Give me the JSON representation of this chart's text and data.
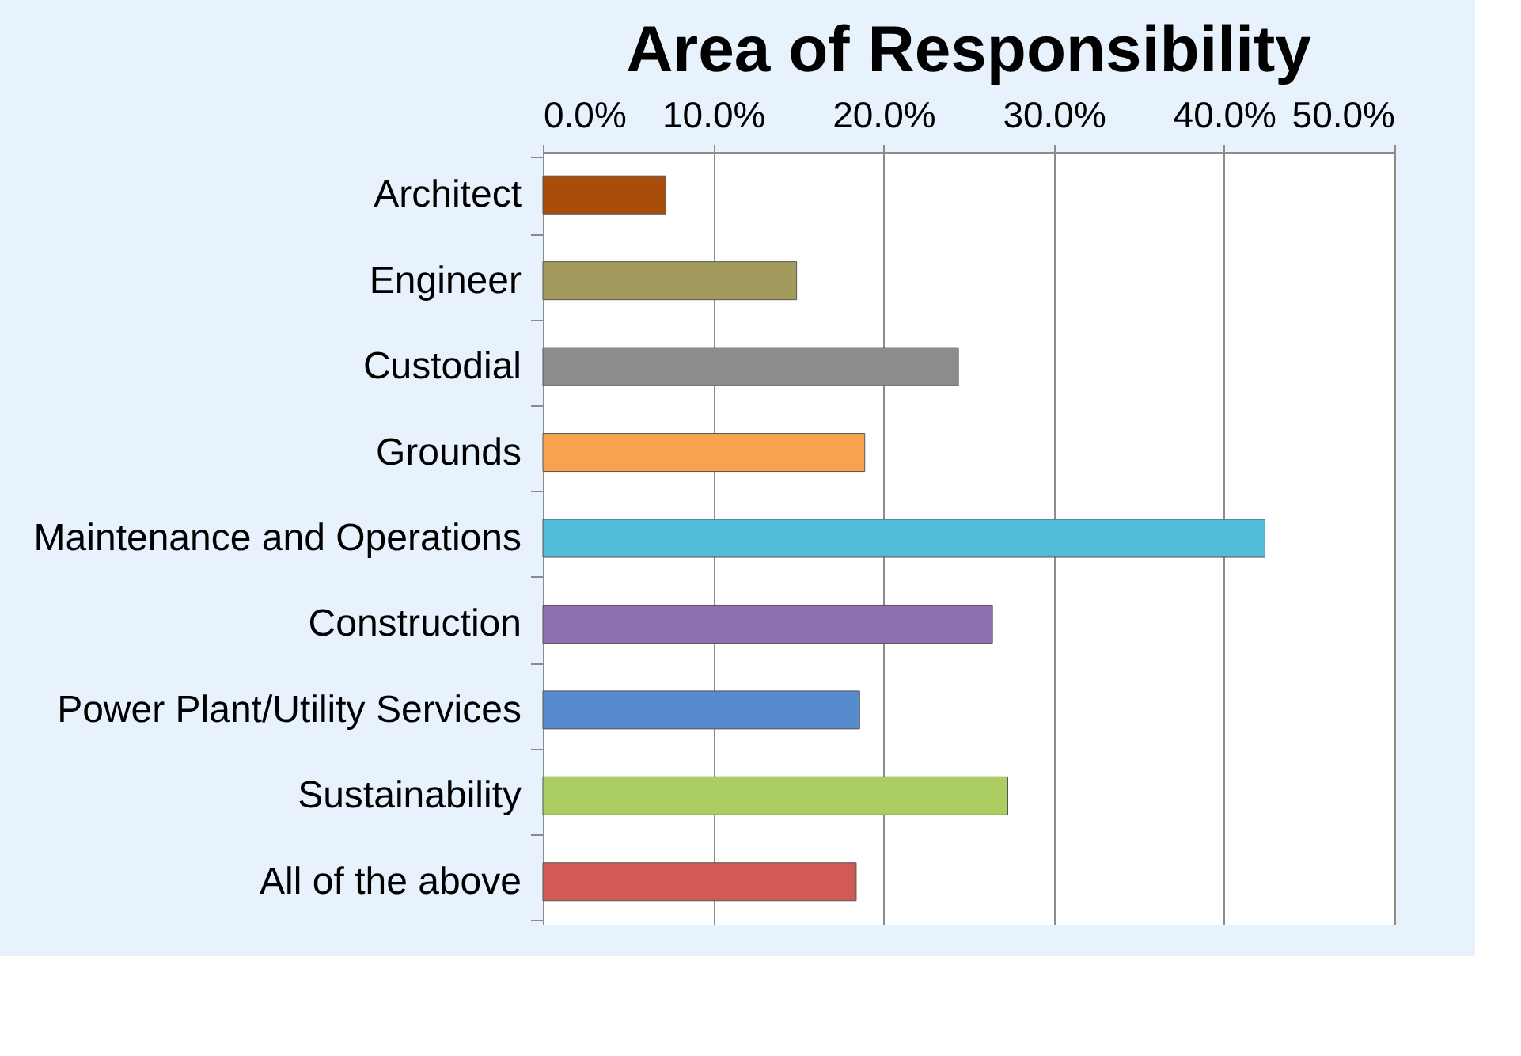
{
  "chart_data": {
    "type": "bar",
    "orientation": "horizontal",
    "title": "Area of Responsibility",
    "categories": [
      "Architect",
      "Engineer",
      "Custodial",
      "Grounds",
      "Maintenance and Operations",
      "Construction",
      "Power Plant/Utility Services",
      "Sustainability",
      "All of the above"
    ],
    "values": [
      7.2,
      14.9,
      24.4,
      18.9,
      42.4,
      26.4,
      18.6,
      27.3,
      18.4
    ],
    "colors": [
      "#a94e0a",
      "#a39a5e",
      "#8c8c8c",
      "#f9a24e",
      "#52bdd9",
      "#8d6fb2",
      "#568ccd",
      "#abcd62",
      "#d25a54"
    ],
    "xlim": [
      0,
      50
    ],
    "xticks": [
      {
        "value": 0,
        "label": "0.0%"
      },
      {
        "value": 10,
        "label": "10.0%"
      },
      {
        "value": 20,
        "label": "20.0%"
      },
      {
        "value": 30,
        "label": "30.0%"
      },
      {
        "value": 40,
        "label": "40.0%"
      },
      {
        "value": 50,
        "label": "50.0%"
      }
    ],
    "grid": "x"
  }
}
